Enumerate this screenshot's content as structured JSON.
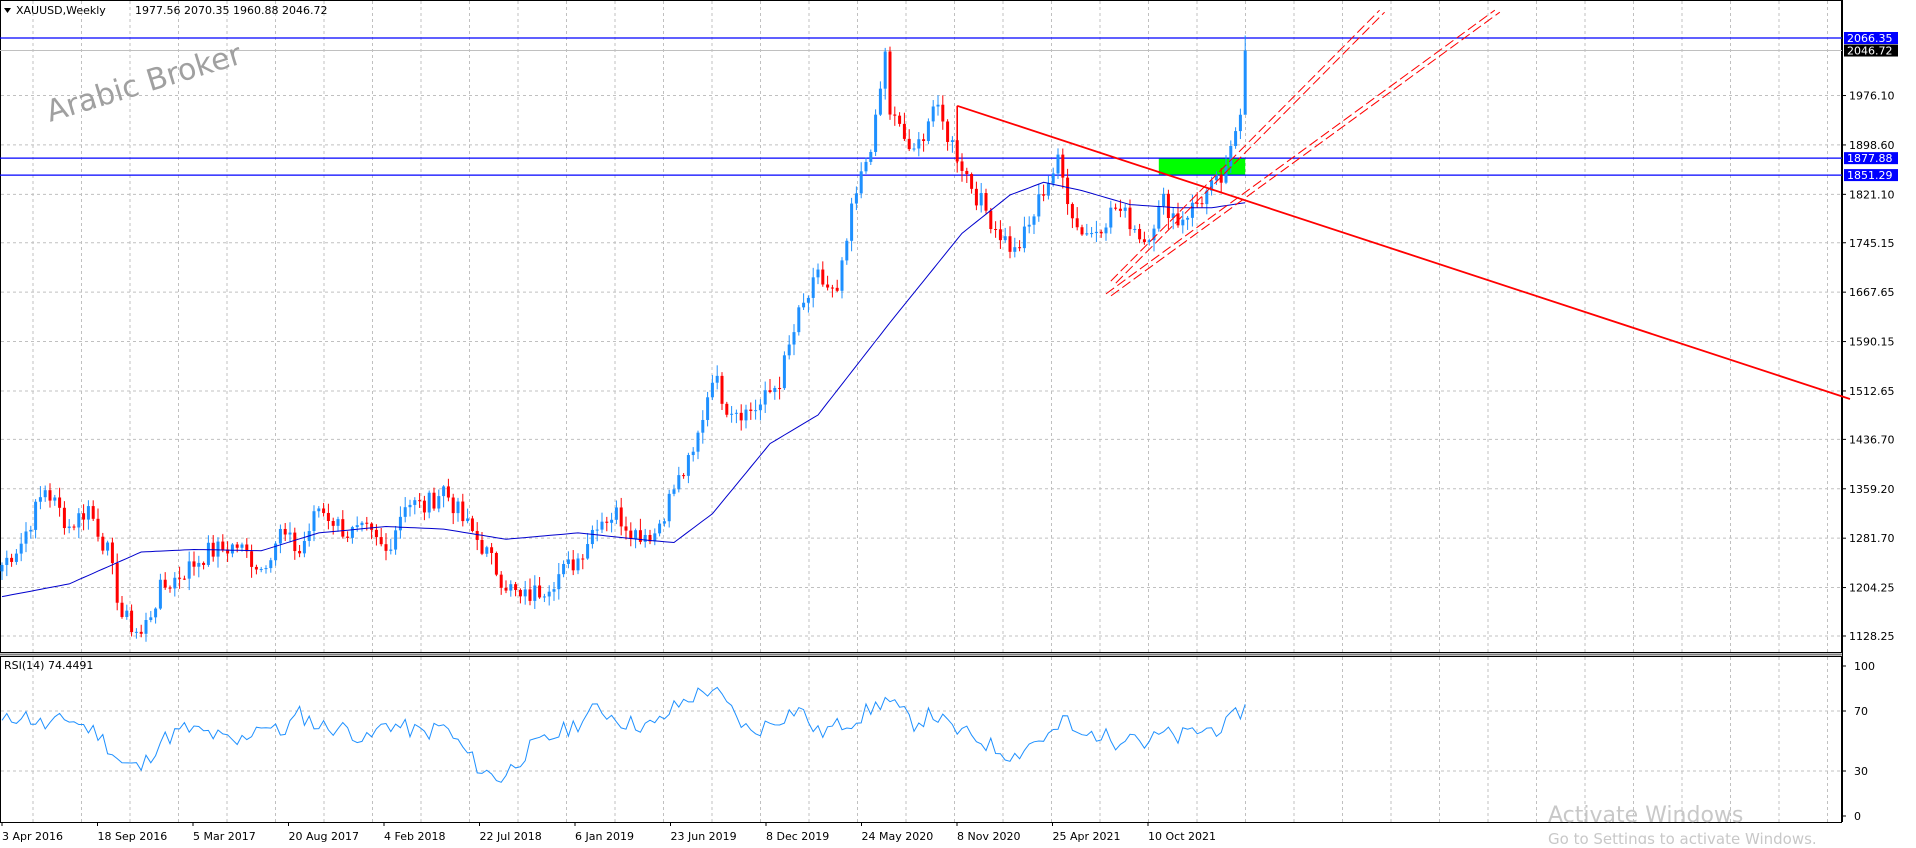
{
  "header": {
    "symbol": "XAUUSD,Weekly",
    "ohlc": "1977.56 2070.35 1960.88 2046.72"
  },
  "watermark": "Arabic Broker",
  "os_overlay": {
    "title": "Activate Windows",
    "subtitle": "Go to Settings to activate Windows."
  },
  "colors": {
    "bull": "#1e90ff",
    "bear": "#ff0000",
    "ma": "#0000cd",
    "level": "#0000ff",
    "trend": "#ff0000",
    "zone": "#00ff00",
    "rsi": "#1e90ff",
    "grid": "#c0c0c0"
  },
  "chart_data": [
    {
      "type": "candlestick",
      "title": "XAUUSD,Weekly",
      "price_ticks": [
        "2066.35",
        "2046.72",
        "1976.10",
        "1898.60",
        "1877.88",
        "1851.29",
        "1821.10",
        "1745.15",
        "1667.65",
        "1590.15",
        "1512.65",
        "1436.70",
        "1359.20",
        "1281.70",
        "1204.25",
        "1128.25"
      ],
      "x_ticks": [
        "3 Apr 2016",
        "18 Sep 2016",
        "5 Mar 2017",
        "20 Aug 2017",
        "4 Feb 2018",
        "22 Jul 2018",
        "6 Jan 2019",
        "23 Jun 2019",
        "8 Dec 2019",
        "24 May 2020",
        "8 Nov 2020",
        "25 Apr 2021",
        "10 Oct 2021"
      ],
      "ylim": [
        1100,
        2100
      ],
      "close_path": [
        [
          0,
          1240
        ],
        [
          4,
          1275
        ],
        [
          9,
          1360
        ],
        [
          14,
          1300
        ],
        [
          18,
          1330
        ],
        [
          22,
          1260
        ],
        [
          25,
          1160
        ],
        [
          29,
          1130
        ],
        [
          33,
          1200
        ],
        [
          38,
          1230
        ],
        [
          43,
          1260
        ],
        [
          49,
          1270
        ],
        [
          54,
          1235
        ],
        [
          58,
          1290
        ],
        [
          62,
          1260
        ],
        [
          66,
          1330
        ],
        [
          72,
          1290
        ],
        [
          76,
          1290
        ],
        [
          80,
          1260
        ],
        [
          84,
          1340
        ],
        [
          88,
          1330
        ],
        [
          92,
          1360
        ],
        [
          96,
          1310
        ],
        [
          100,
          1270
        ],
        [
          104,
          1220
        ],
        [
          108,
          1185
        ],
        [
          112,
          1200
        ],
        [
          117,
          1230
        ],
        [
          120,
          1250
        ],
        [
          124,
          1310
        ],
        [
          128,
          1320
        ],
        [
          132,
          1290
        ],
        [
          136,
          1290
        ],
        [
          140,
          1360
        ],
        [
          144,
          1410
        ],
        [
          148,
          1540
        ],
        [
          151,
          1490
        ],
        [
          155,
          1480
        ],
        [
          158,
          1490
        ],
        [
          162,
          1530
        ],
        [
          166,
          1630
        ],
        [
          170,
          1690
        ],
        [
          174,
          1660
        ],
        [
          177,
          1790
        ],
        [
          182,
          1930
        ],
        [
          184,
          2040
        ],
        [
          185,
          1950
        ],
        [
          190,
          1880
        ],
        [
          194,
          1960
        ],
        [
          198,
          1900
        ],
        [
          203,
          1820
        ],
        [
          207,
          1770
        ],
        [
          211,
          1730
        ],
        [
          214,
          1770
        ],
        [
          217,
          1830
        ],
        [
          220,
          1870
        ],
        [
          224,
          1770
        ],
        [
          227,
          1760
        ],
        [
          232,
          1800
        ],
        [
          235,
          1780
        ],
        [
          238,
          1750
        ],
        [
          242,
          1810
        ],
        [
          245,
          1780
        ],
        [
          248,
          1800
        ],
        [
          252,
          1830
        ],
        [
          255,
          1850
        ],
        [
          258,
          1960
        ],
        [
          259,
          2046.72
        ]
      ],
      "ma_path": [
        [
          0,
          1190
        ],
        [
          14,
          1210
        ],
        [
          29,
          1260
        ],
        [
          40,
          1264
        ],
        [
          54,
          1262
        ],
        [
          66,
          1290
        ],
        [
          80,
          1300
        ],
        [
          92,
          1296
        ],
        [
          105,
          1280
        ],
        [
          120,
          1290
        ],
        [
          135,
          1278
        ],
        [
          140,
          1275
        ],
        [
          148,
          1320
        ],
        [
          160,
          1430
        ],
        [
          170,
          1475
        ],
        [
          185,
          1620
        ],
        [
          200,
          1760
        ],
        [
          210,
          1820
        ],
        [
          217,
          1840
        ],
        [
          225,
          1827
        ],
        [
          235,
          1805
        ],
        [
          245,
          1800
        ],
        [
          252,
          1800
        ],
        [
          259,
          1808
        ]
      ],
      "levels": [
        {
          "price": 2066.35,
          "label": "2066.35"
        },
        {
          "price": 1877.88,
          "label": "1877.88"
        },
        {
          "price": 1851.29,
          "label": "1851.29"
        }
      ],
      "current_price": {
        "price": 2046.72,
        "label": "2046.72"
      },
      "trend_lines": [
        {
          "style": "solid",
          "points": [
            [
              199,
              1960
            ],
            [
              199,
              1960
            ]
          ]
        },
        {
          "style": "solid",
          "points": [
            [
              199,
              1960
            ],
            [
              385,
              1500
            ]
          ]
        },
        {
          "style": "dashed",
          "points": [
            [
              231,
              1685
            ],
            [
              287,
              2110
            ]
          ]
        },
        {
          "style": "dashed",
          "points": [
            [
              230,
              1665
            ],
            [
              311,
              2110
            ]
          ]
        }
      ],
      "zone": {
        "from_index": 241,
        "to_index": 259,
        "low": 1851.29,
        "high": 1877.88
      }
    },
    {
      "type": "line",
      "title": "RSI(14) 74.4491",
      "levels_shown": [
        "100",
        "70",
        "30",
        "0"
      ],
      "ylim": [
        0,
        100
      ],
      "path": [
        [
          0,
          62
        ],
        [
          4,
          68
        ],
        [
          9,
          60
        ],
        [
          14,
          65
        ],
        [
          20,
          55
        ],
        [
          25,
          35
        ],
        [
          29,
          32
        ],
        [
          33,
          50
        ],
        [
          38,
          58
        ],
        [
          43,
          55
        ],
        [
          49,
          48
        ],
        [
          54,
          62
        ],
        [
          58,
          55
        ],
        [
          62,
          68
        ],
        [
          66,
          60
        ],
        [
          72,
          58
        ],
        [
          76,
          50
        ],
        [
          80,
          62
        ],
        [
          88,
          55
        ],
        [
          92,
          60
        ],
        [
          96,
          45
        ],
        [
          100,
          30
        ],
        [
          104,
          25
        ],
        [
          110,
          45
        ],
        [
          116,
          55
        ],
        [
          120,
          62
        ],
        [
          124,
          72
        ],
        [
          130,
          62
        ],
        [
          136,
          60
        ],
        [
          140,
          72
        ],
        [
          144,
          80
        ],
        [
          148,
          85
        ],
        [
          152,
          70
        ],
        [
          156,
          55
        ],
        [
          160,
          62
        ],
        [
          166,
          72
        ],
        [
          170,
          55
        ],
        [
          174,
          60
        ],
        [
          178,
          65
        ],
        [
          182,
          73
        ],
        [
          184,
          78
        ],
        [
          190,
          62
        ],
        [
          194,
          68
        ],
        [
          198,
          58
        ],
        [
          203,
          52
        ],
        [
          207,
          45
        ],
        [
          211,
          40
        ],
        [
          214,
          48
        ],
        [
          219,
          55
        ],
        [
          222,
          65
        ],
        [
          224,
          52
        ],
        [
          228,
          55
        ],
        [
          232,
          50
        ],
        [
          235,
          58
        ],
        [
          238,
          48
        ],
        [
          242,
          55
        ],
        [
          245,
          52
        ],
        [
          248,
          56
        ],
        [
          252,
          58
        ],
        [
          255,
          60
        ],
        [
          258,
          70
        ],
        [
          259,
          74.4491
        ]
      ]
    }
  ]
}
